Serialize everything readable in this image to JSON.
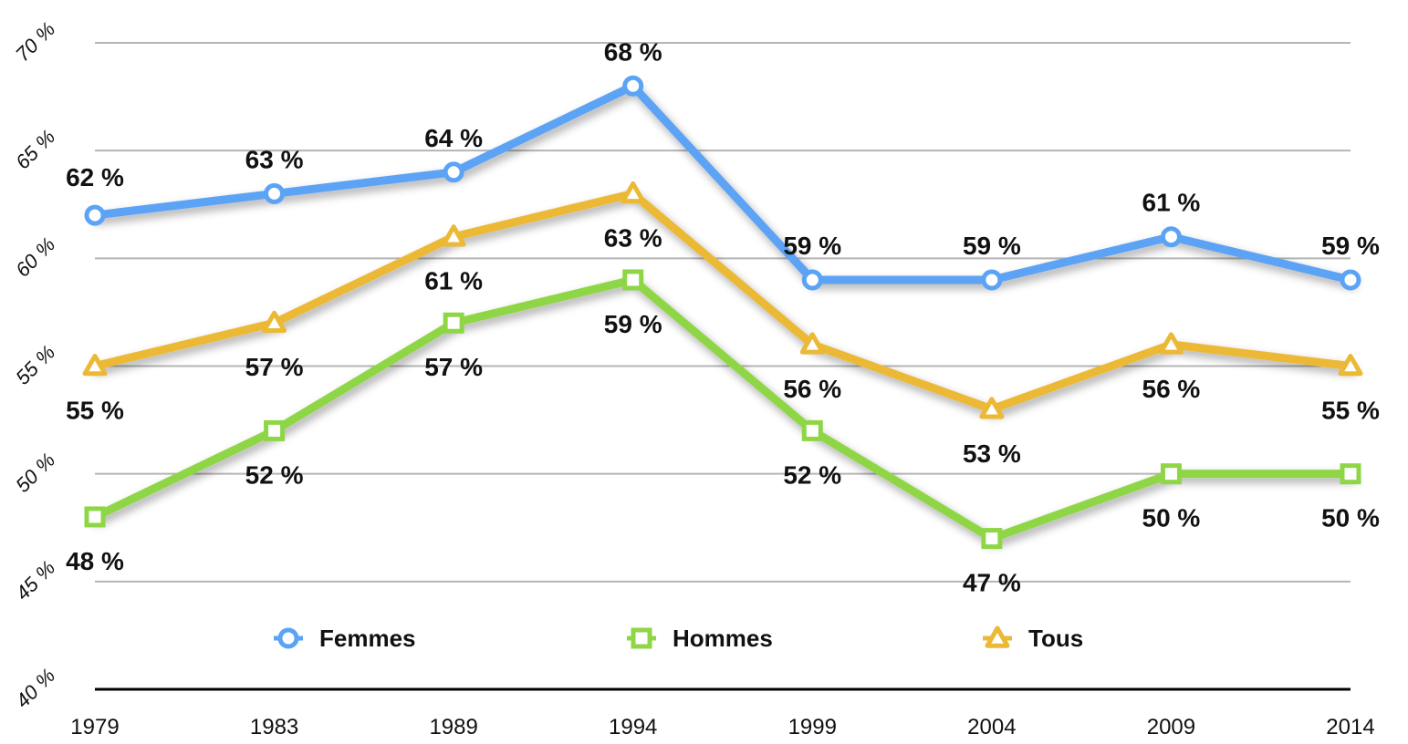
{
  "chart_data": {
    "type": "line",
    "categories": [
      "1979",
      "1983",
      "1989",
      "1994",
      "1999",
      "2004",
      "2009",
      "2014"
    ],
    "ylim": [
      40,
      70
    ],
    "yticks": [
      40,
      45,
      50,
      55,
      60,
      65,
      70
    ],
    "ytick_labels": [
      "40 %",
      "45 %",
      "50 %",
      "55 %",
      "60 %",
      "65 %",
      "70 %"
    ],
    "grid": true,
    "legend_position": "bottom",
    "series": [
      {
        "name": "Femmes",
        "color": "#5ba3f5",
        "marker": "circle",
        "values": [
          62,
          63,
          64,
          68,
          59,
          59,
          61,
          59
        ],
        "labels": [
          "62 %",
          "63 %",
          "64 %",
          "68 %",
          "59 %",
          "59 %",
          "61 %",
          "59 %"
        ]
      },
      {
        "name": "Hommes",
        "color": "#8fd647",
        "marker": "square",
        "values": [
          48,
          52,
          57,
          59,
          52,
          47,
          50,
          50
        ],
        "labels": [
          "48 %",
          "52 %",
          "57 %",
          "59 %",
          "52 %",
          "47 %",
          "50 %",
          "50 %"
        ]
      },
      {
        "name": "Tous",
        "color": "#ebb936",
        "marker": "triangle",
        "values": [
          55,
          57,
          61,
          63,
          56,
          53,
          56,
          55
        ],
        "labels": [
          "55 %",
          "57 %",
          "61 %",
          "63 %",
          "56 %",
          "53 %",
          "56 %",
          "55 %"
        ]
      }
    ]
  }
}
